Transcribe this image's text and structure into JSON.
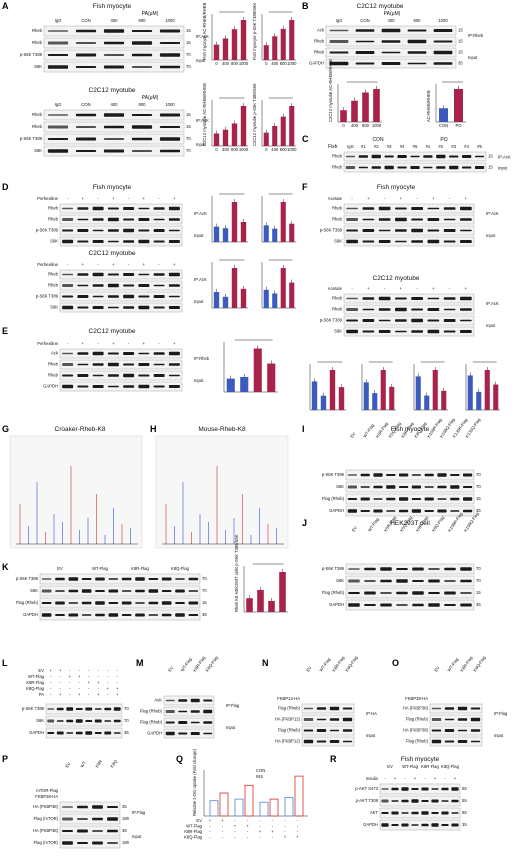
{
  "panels": {
    "A": {
      "letter": "A",
      "title_fish": "Fish myocyte",
      "title_c2c12": "C2C12 myotube",
      "pa_header": "PA(μM)",
      "lanes": [
        "IgG",
        "CON",
        "400",
        "800",
        "1000"
      ],
      "rows": [
        "Rheb",
        "Rheb",
        "p-S6K T389",
        "S6K"
      ],
      "ip_label": "IP:AcK",
      "input_label": "Input",
      "kda_label": "kDA",
      "mw": [
        "15",
        "15",
        "70",
        "70"
      ],
      "chart_fish_ack": {
        "ylabel": "Fish myocyte AC-RHEB/RHEB",
        "x_label": "PA (μM)",
        "categories": [
          "0",
          "400",
          "800",
          "1000"
        ]
      },
      "chart_fish_ps6k": {
        "ylabel": "Fish myocyte p-S6K T389/S6K",
        "categories": [
          "0",
          "400",
          "800",
          "1000"
        ]
      },
      "chart_c2_ack": {
        "ylabel": "C2C12 myotube AC-RHEB/RHEB",
        "categories": [
          "0",
          "400",
          "800",
          "1000"
        ]
      },
      "chart_c2_ps6k": {
        "ylabel": "C2C12 myotube p-S6K T389/S6K",
        "categories": [
          "0",
          "400",
          "800",
          "1000"
        ]
      }
    },
    "B": {
      "letter": "B",
      "title": "C2C12 myotube",
      "pa_header": "PA(μM)",
      "lanes": [
        "IgG",
        "CON",
        "400",
        "800",
        "1000"
      ],
      "rows": [
        "Ack",
        "Rheb",
        "Rheb",
        "GAPDH"
      ],
      "ip_label": "IP:Rheb",
      "input_label": "Input",
      "kda_label": "kDA",
      "mw": [
        "15",
        "15",
        "15",
        "35"
      ],
      "chart_left_ylabel": "C2C12 myotube AC-RHEB/RHEB",
      "chart_right_ylabel": "AC-RHEB/RHEB",
      "chart_right_cats": [
        "CON",
        "PO"
      ]
    },
    "C": {
      "letter": "C",
      "group_con": "CON",
      "group_po": "PO",
      "lanes": [
        "IgG",
        "#1",
        "#2",
        "#3",
        "#4",
        "#5",
        "#1",
        "#2",
        "#3",
        "#4",
        "#5"
      ],
      "fish_label": "Fish",
      "rows": [
        "Rheb",
        "Rheb"
      ],
      "ip_label": "IP:AcK",
      "input_label": "Input",
      "mw": [
        "15",
        "15"
      ]
    },
    "D": {
      "letter": "D",
      "title_fish": "Fish myocyte",
      "title_c2c12": "C2C12 myotube",
      "treat": "Perhexiline",
      "rows": [
        "Rheb",
        "Rheb",
        "p-S6K T389",
        "S6K"
      ],
      "ip_label": "IP:AcK",
      "input_label": "Input",
      "legend": [
        "CON",
        "PA"
      ]
    },
    "E": {
      "letter": "E",
      "title": "C2C12 myotube",
      "treat": "Perhexiline",
      "rows": [
        "Ack",
        "Rheb",
        "Rheb",
        "GAPDH"
      ],
      "ip_label": "IP:Rheb",
      "input_label": "Input",
      "legend": [
        "CON",
        "PA"
      ]
    },
    "F": {
      "letter": "F",
      "title_fish": "Fish myocyte",
      "title_c2c12": "C2C12 myotube",
      "treat": "Acetate",
      "rows": [
        "Rheb",
        "Rheb",
        "p-S6K T389",
        "S6K"
      ],
      "ip_label": "IP:AcK",
      "input_label": "Input",
      "legend": [
        "CON",
        "PA"
      ]
    },
    "G": {
      "letter": "G",
      "title": "Croaker-Rheb-K8"
    },
    "H": {
      "letter": "H",
      "title": "Mouse-Rheb-K8"
    },
    "I": {
      "letter": "I",
      "title": "Fish myocyte",
      "lanes": [
        "EV",
        "WT-Flag",
        "K5R-Flag",
        "K5Q-Flag",
        "K8R-Flag",
        "K8Q-Flag",
        "K109R-Flag",
        "K109Q-Flag",
        "K135R-Flag",
        "K135Q-Flag"
      ],
      "rows": [
        "p-S6K T389",
        "S6K",
        "Flag (Rheb)",
        "GAPDH"
      ],
      "mw": [
        "70",
        "70",
        "15",
        "35"
      ]
    },
    "J": {
      "letter": "J",
      "title": "HEK293T cell",
      "lanes": [
        "EV",
        "WT-Flag",
        "K5R-Flag",
        "K5Q-Flag",
        "K8R-Flag",
        "K8Q-Flag",
        "K109R-Flag",
        "K109Q-Flag"
      ],
      "rows": [
        "p-S6K T389",
        "S6K",
        "Flag (Rheb)",
        "GAPDH"
      ],
      "mw": [
        "70",
        "70",
        "15",
        "35"
      ]
    },
    "K": {
      "letter": "K",
      "groups": [
        "EV",
        "WT-Flag",
        "K8R-Flag",
        "K8Q-Flag"
      ],
      "rows": [
        "p-S6K T389",
        "S6K",
        "Flag (Rheb)",
        "GAPDH"
      ],
      "mw": [
        "70",
        "70",
        "15",
        "35"
      ],
      "chart_ylabel": "Rheb K8 HEK293T cells p-S6K T389/S6K",
      "chart_cats": [
        "EV",
        "WT-Flag",
        "K8R-Flag",
        "K8Q-Flag"
      ]
    },
    "L": {
      "letter": "L",
      "conds": [
        "EV",
        "WT-Flag",
        "K8R-Flag",
        "K8Q-Flag",
        "PA"
      ],
      "rows": [
        "p-S6K T389",
        "S6K",
        "GAPDH"
      ],
      "mw": [
        "70",
        "70",
        "35"
      ]
    },
    "M": {
      "letter": "M",
      "lanes": [
        "EV",
        "WT-Flag",
        "K8R-Flag",
        "K8Q-Flag"
      ],
      "rows": [
        "AcK",
        "Flag (Rheb)",
        "Flag (Rheb)",
        "GAPDH"
      ],
      "ip_label": "IP:Flag",
      "input_label": "Input"
    },
    "N": {
      "letter": "N",
      "lanes": [
        "EV",
        "WT-Flag",
        "K8R-Flag",
        "K8Q-Flag"
      ],
      "cond": "FKBP12-HA",
      "rows": [
        "Flag (Rheb)",
        "HA (FKBP12)",
        "Flag (Rheb)",
        "HA (FKBP12)"
      ],
      "ip_label": "IP:HA",
      "input_label": "Input"
    },
    "O": {
      "letter": "O",
      "lanes": [
        "EV",
        "WT-Flag",
        "K8R-Flag",
        "K8Q-Flag"
      ],
      "cond": "FKBP38-HA",
      "rows": [
        "HA (FKBP38)",
        "Flag (Rheb)",
        "HA (FKBP38)",
        "Flag (Rheb)"
      ],
      "ip_label": "IP:Flag",
      "input_label": "Input"
    },
    "P": {
      "letter": "P",
      "lanes": [
        "EV",
        "WT",
        "K8R",
        "K8Q"
      ],
      "conds": [
        "mTOR-Flag",
        "FKBP38-HA"
      ],
      "rows": [
        "HA (FKBP38)",
        "Flag (mTOR)",
        "HA (FKBP38)",
        "Flag (mTOR)"
      ],
      "ip_label": "IP:Flag",
      "input_label": "Input",
      "mw": [
        "35",
        "180",
        "35",
        "180"
      ]
    },
    "Q": {
      "letter": "Q",
      "legend": [
        "CON",
        "INS"
      ],
      "ylabel": "Relative 2-DG uptake (Fold change)",
      "conds": [
        "EV",
        "WT-Flag",
        "K8R-Flag",
        "K8Q-Flag"
      ]
    },
    "R": {
      "letter": "R",
      "title": "Fish myocyte",
      "treat": "Insulin",
      "lanes": [
        "EV",
        "WT-Flag",
        "K8R-Flag",
        "K8Q-Flag"
      ],
      "rows": [
        "p-AKT S473",
        "p-AKT T308",
        "AKT",
        "GAPDH"
      ],
      "mw": [
        "55",
        "55",
        "55",
        "35"
      ]
    }
  },
  "colors": {
    "con": "#3d5bbf",
    "pa": "#a8234a",
    "open_con": "#6a8fd6",
    "open_ins": "#d9473d"
  }
}
